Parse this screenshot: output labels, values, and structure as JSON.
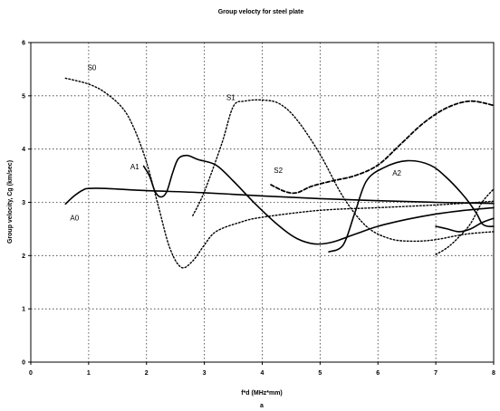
{
  "chart_data": {
    "type": "line",
    "title": "Group velocty for steel plate",
    "xlabel": "f*d (MHz*mm)",
    "ylabel": "Group velocity, Cg (km/sec)",
    "footnote": "a",
    "xlim": [
      0,
      8
    ],
    "ylim": [
      0,
      6
    ],
    "x_ticks": [
      "0",
      "1",
      "2",
      "3",
      "4",
      "5",
      "6",
      "7",
      "8"
    ],
    "y_ticks": [
      "0",
      "1",
      "2",
      "3",
      "4",
      "5",
      "6"
    ],
    "grid": true,
    "series": [
      {
        "name": "A0",
        "style": "solid",
        "points": [
          [
            0.6,
            2.97
          ],
          [
            0.75,
            3.12
          ],
          [
            0.9,
            3.23
          ],
          [
            1.0,
            3.26
          ],
          [
            1.3,
            3.26
          ],
          [
            2.0,
            3.22
          ],
          [
            3.0,
            3.18
          ],
          [
            4.0,
            3.12
          ],
          [
            5.0,
            3.07
          ],
          [
            6.0,
            3.03
          ],
          [
            7.0,
            3.0
          ],
          [
            8.0,
            2.98
          ]
        ]
      },
      {
        "name": "A1",
        "style": "solid",
        "points": [
          [
            1.95,
            3.68
          ],
          [
            2.05,
            3.5
          ],
          [
            2.15,
            3.2
          ],
          [
            2.25,
            3.1
          ],
          [
            2.35,
            3.2
          ],
          [
            2.45,
            3.55
          ],
          [
            2.55,
            3.82
          ],
          [
            2.7,
            3.88
          ],
          [
            2.9,
            3.8
          ],
          [
            3.2,
            3.7
          ],
          [
            3.5,
            3.4
          ],
          [
            3.9,
            2.95
          ],
          [
            4.3,
            2.55
          ],
          [
            4.6,
            2.32
          ],
          [
            4.9,
            2.22
          ],
          [
            5.2,
            2.25
          ],
          [
            5.6,
            2.4
          ],
          [
            6.0,
            2.55
          ],
          [
            6.5,
            2.68
          ],
          [
            7.0,
            2.78
          ],
          [
            7.5,
            2.85
          ],
          [
            8.0,
            2.9
          ]
        ]
      },
      {
        "name": "A2",
        "style": "solid",
        "points": [
          [
            5.15,
            2.07
          ],
          [
            5.4,
            2.2
          ],
          [
            5.6,
            2.8
          ],
          [
            5.8,
            3.4
          ],
          [
            6.1,
            3.65
          ],
          [
            6.5,
            3.78
          ],
          [
            6.9,
            3.7
          ],
          [
            7.2,
            3.45
          ],
          [
            7.5,
            3.1
          ],
          [
            7.7,
            2.8
          ],
          [
            7.8,
            2.6
          ],
          [
            7.9,
            2.55
          ],
          [
            8.0,
            2.55
          ]
        ]
      },
      {
        "name": "S0",
        "style": "dotted",
        "points": [
          [
            0.6,
            5.33
          ],
          [
            1.0,
            5.22
          ],
          [
            1.3,
            5.05
          ],
          [
            1.6,
            4.75
          ],
          [
            1.8,
            4.35
          ],
          [
            2.0,
            3.75
          ],
          [
            2.2,
            2.95
          ],
          [
            2.4,
            2.15
          ],
          [
            2.6,
            1.78
          ],
          [
            2.8,
            1.9
          ],
          [
            3.0,
            2.2
          ],
          [
            3.2,
            2.45
          ],
          [
            3.6,
            2.62
          ],
          [
            4.0,
            2.72
          ],
          [
            5.0,
            2.85
          ],
          [
            6.0,
            2.9
          ],
          [
            7.0,
            2.95
          ],
          [
            8.0,
            3.02
          ]
        ]
      },
      {
        "name": "S1",
        "style": "dotted",
        "points": [
          [
            2.8,
            2.75
          ],
          [
            3.0,
            3.2
          ],
          [
            3.3,
            4.1
          ],
          [
            3.5,
            4.8
          ],
          [
            3.7,
            4.9
          ],
          [
            4.0,
            4.92
          ],
          [
            4.3,
            4.85
          ],
          [
            4.6,
            4.55
          ],
          [
            5.0,
            3.9
          ],
          [
            5.4,
            3.1
          ],
          [
            5.8,
            2.55
          ],
          [
            6.2,
            2.32
          ],
          [
            6.6,
            2.27
          ],
          [
            7.0,
            2.3
          ],
          [
            7.5,
            2.4
          ],
          [
            8.0,
            2.45
          ]
        ]
      },
      {
        "name": "S2",
        "style": "dashed",
        "points": [
          [
            4.15,
            3.33
          ],
          [
            4.4,
            3.2
          ],
          [
            4.6,
            3.18
          ],
          [
            4.85,
            3.3
          ],
          [
            5.2,
            3.4
          ],
          [
            5.6,
            3.5
          ],
          [
            6.0,
            3.7
          ],
          [
            6.4,
            4.1
          ],
          [
            6.8,
            4.5
          ],
          [
            7.2,
            4.78
          ],
          [
            7.6,
            4.9
          ],
          [
            8.0,
            4.82
          ]
        ]
      },
      {
        "name": "",
        "style": "dotted",
        "points": [
          [
            7.0,
            2.02
          ],
          [
            7.2,
            2.15
          ],
          [
            7.4,
            2.35
          ],
          [
            7.6,
            2.6
          ],
          [
            7.8,
            3.0
          ],
          [
            8.0,
            3.25
          ]
        ]
      },
      {
        "name": "",
        "style": "solid",
        "points": [
          [
            7.0,
            2.55
          ],
          [
            7.2,
            2.5
          ],
          [
            7.4,
            2.45
          ],
          [
            7.6,
            2.5
          ],
          [
            7.8,
            2.62
          ],
          [
            8.0,
            2.7
          ]
        ]
      }
    ],
    "annotations": [
      {
        "text": "S0",
        "x": 0.98,
        "y": 5.48
      },
      {
        "text": "S1",
        "x": 3.38,
        "y": 4.92
      },
      {
        "text": "A1",
        "x": 1.72,
        "y": 3.62
      },
      {
        "text": "S2",
        "x": 4.2,
        "y": 3.55
      },
      {
        "text": "A2",
        "x": 6.25,
        "y": 3.5
      },
      {
        "text": "A0",
        "x": 0.68,
        "y": 2.66
      }
    ]
  }
}
